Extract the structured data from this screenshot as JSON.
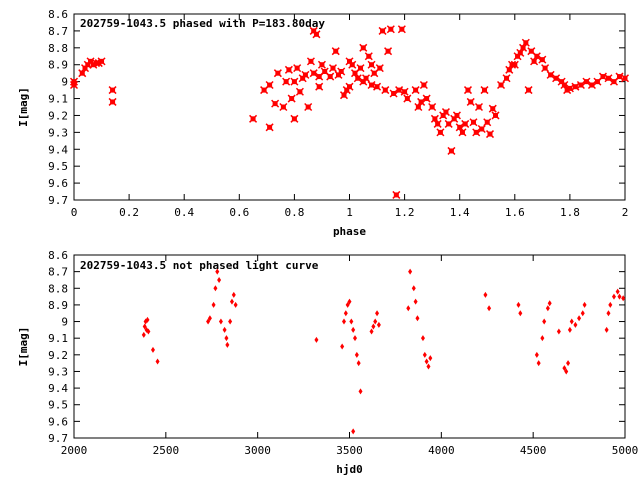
{
  "chart_data": [
    {
      "type": "scatter",
      "title": "202759-1043.5 phased with P=183.80day",
      "xlabel": "phase",
      "ylabel": "I[mag]",
      "xlim": [
        0,
        2
      ],
      "ylim": [
        8.6,
        9.7
      ],
      "y_inverted": true,
      "x_ticks": [
        "0",
        "0.2",
        "0.4",
        "0.6",
        "0.8",
        "1",
        "1.2",
        "1.4",
        "1.6",
        "1.8",
        "2"
      ],
      "y_ticks": [
        "8.6",
        "8.7",
        "8.8",
        "8.9",
        "9",
        "9.1",
        "9.2",
        "9.3",
        "9.4",
        "9.5",
        "9.6",
        "9.7"
      ],
      "marker_color": "#ff0000",
      "series": [
        {
          "points": [
            [
              0.0,
              9.02
            ],
            [
              0.0,
              9.0
            ],
            [
              0.03,
              8.95
            ],
            [
              0.04,
              8.92
            ],
            [
              0.05,
              8.9
            ],
            [
              0.06,
              8.88
            ],
            [
              0.07,
              8.9
            ],
            [
              0.08,
              8.89
            ],
            [
              0.09,
              8.89
            ],
            [
              0.1,
              8.88
            ],
            [
              0.14,
              9.05
            ],
            [
              0.14,
              9.12
            ],
            [
              0.65,
              9.22
            ],
            [
              0.69,
              9.05
            ],
            [
              0.71,
              9.02
            ],
            [
              0.71,
              9.27
            ],
            [
              0.73,
              9.13
            ],
            [
              0.74,
              8.95
            ],
            [
              0.76,
              9.15
            ],
            [
              0.77,
              9.0
            ],
            [
              0.78,
              8.93
            ],
            [
              0.79,
              9.1
            ],
            [
              0.8,
              9.0
            ],
            [
              0.8,
              9.22
            ],
            [
              0.81,
              8.92
            ],
            [
              0.82,
              9.06
            ],
            [
              0.83,
              8.98
            ],
            [
              0.84,
              8.96
            ],
            [
              0.85,
              9.15
            ],
            [
              0.86,
              8.88
            ],
            [
              0.87,
              8.7
            ],
            [
              0.87,
              8.95
            ],
            [
              0.88,
              8.72
            ],
            [
              0.89,
              9.03
            ],
            [
              0.89,
              8.97
            ],
            [
              0.9,
              8.9
            ],
            [
              0.91,
              8.94
            ],
            [
              0.93,
              8.97
            ],
            [
              0.94,
              8.92
            ],
            [
              0.95,
              8.82
            ],
            [
              0.96,
              8.96
            ],
            [
              0.97,
              8.94
            ],
            [
              0.98,
              9.08
            ],
            [
              0.99,
              9.05
            ],
            [
              1.0,
              8.88
            ],
            [
              1.0,
              9.03
            ],
            [
              1.01,
              8.9
            ],
            [
              1.02,
              8.95
            ],
            [
              1.03,
              8.98
            ],
            [
              1.04,
              8.92
            ],
            [
              1.05,
              8.8
            ],
            [
              1.05,
              9.0
            ],
            [
              1.06,
              8.98
            ],
            [
              1.07,
              8.85
            ],
            [
              1.08,
              8.9
            ],
            [
              1.08,
              9.02
            ],
            [
              1.09,
              8.95
            ],
            [
              1.1,
              9.03
            ],
            [
              1.11,
              8.92
            ],
            [
              1.12,
              8.7
            ],
            [
              1.13,
              9.05
            ],
            [
              1.14,
              8.82
            ],
            [
              1.15,
              8.69
            ],
            [
              1.16,
              9.07
            ],
            [
              1.17,
              9.67
            ],
            [
              1.18,
              9.05
            ],
            [
              1.19,
              8.69
            ],
            [
              1.2,
              9.06
            ],
            [
              1.21,
              9.1
            ],
            [
              1.24,
              9.05
            ],
            [
              1.25,
              9.15
            ],
            [
              1.26,
              9.12
            ],
            [
              1.27,
              9.02
            ],
            [
              1.28,
              9.1
            ],
            [
              1.3,
              9.15
            ],
            [
              1.31,
              9.22
            ],
            [
              1.32,
              9.25
            ],
            [
              1.33,
              9.3
            ],
            [
              1.34,
              9.2
            ],
            [
              1.35,
              9.18
            ],
            [
              1.36,
              9.25
            ],
            [
              1.37,
              9.41
            ],
            [
              1.38,
              9.22
            ],
            [
              1.39,
              9.2
            ],
            [
              1.4,
              9.27
            ],
            [
              1.41,
              9.3
            ],
            [
              1.42,
              9.25
            ],
            [
              1.43,
              9.05
            ],
            [
              1.44,
              9.12
            ],
            [
              1.45,
              9.24
            ],
            [
              1.46,
              9.3
            ],
            [
              1.47,
              9.15
            ],
            [
              1.48,
              9.28
            ],
            [
              1.49,
              9.05
            ],
            [
              1.5,
              9.24
            ],
            [
              1.51,
              9.31
            ],
            [
              1.52,
              9.16
            ],
            [
              1.53,
              9.2
            ],
            [
              1.55,
              9.02
            ],
            [
              1.57,
              8.98
            ],
            [
              1.58,
              8.93
            ],
            [
              1.59,
              8.9
            ],
            [
              1.6,
              8.9
            ],
            [
              1.61,
              8.85
            ],
            [
              1.62,
              8.83
            ],
            [
              1.63,
              8.8
            ],
            [
              1.64,
              8.77
            ],
            [
              1.65,
              9.05
            ],
            [
              1.66,
              8.82
            ],
            [
              1.67,
              8.88
            ],
            [
              1.68,
              8.85
            ],
            [
              1.7,
              8.87
            ],
            [
              1.71,
              8.92
            ],
            [
              1.73,
              8.96
            ],
            [
              1.75,
              8.98
            ],
            [
              1.77,
              9.0
            ],
            [
              1.78,
              9.02
            ],
            [
              1.79,
              9.05
            ],
            [
              1.8,
              9.04
            ],
            [
              1.82,
              9.03
            ],
            [
              1.84,
              9.02
            ],
            [
              1.86,
              9.0
            ],
            [
              1.88,
              9.02
            ],
            [
              1.9,
              9.0
            ],
            [
              1.92,
              8.97
            ],
            [
              1.94,
              8.98
            ],
            [
              1.96,
              9.0
            ],
            [
              1.98,
              8.97
            ],
            [
              2.0,
              8.98
            ]
          ]
        }
      ]
    },
    {
      "type": "scatter",
      "title": "202759-1043.5 not phased light curve",
      "xlabel": "hjd0",
      "ylabel": "I[mag]",
      "xlim": [
        2000,
        5000
      ],
      "ylim": [
        8.6,
        9.7
      ],
      "y_inverted": true,
      "x_ticks": [
        "2000",
        "2500",
        "3000",
        "3500",
        "4000",
        "4500",
        "5000"
      ],
      "y_ticks": [
        "8.6",
        "8.7",
        "8.8",
        "8.9",
        "9",
        "9.1",
        "9.2",
        "9.3",
        "9.4",
        "9.5",
        "9.6",
        "9.7"
      ],
      "marker_color": "#ff0000",
      "series": [
        {
          "points": [
            [
              2380,
              9.08
            ],
            [
              2385,
              9.03
            ],
            [
              2390,
              9.0
            ],
            [
              2395,
              9.05
            ],
            [
              2400,
              8.99
            ],
            [
              2405,
              9.06
            ],
            [
              2430,
              9.17
            ],
            [
              2455,
              9.24
            ],
            [
              2730,
              9.0
            ],
            [
              2740,
              8.98
            ],
            [
              2760,
              8.9
            ],
            [
              2770,
              8.8
            ],
            [
              2780,
              8.7
            ],
            [
              2790,
              8.75
            ],
            [
              2800,
              9.0
            ],
            [
              2820,
              9.05
            ],
            [
              2830,
              9.1
            ],
            [
              2835,
              9.14
            ],
            [
              2850,
              9.0
            ],
            [
              2860,
              8.88
            ],
            [
              2870,
              8.84
            ],
            [
              2880,
              8.9
            ],
            [
              3320,
              9.11
            ],
            [
              3460,
              9.15
            ],
            [
              3470,
              9.0
            ],
            [
              3480,
              8.95
            ],
            [
              3490,
              8.9
            ],
            [
              3500,
              8.88
            ],
            [
              3510,
              9.0
            ],
            [
              3520,
              9.05
            ],
            [
              3530,
              9.1
            ],
            [
              3540,
              9.2
            ],
            [
              3550,
              9.25
            ],
            [
              3560,
              9.42
            ],
            [
              3520,
              9.66
            ],
            [
              3620,
              9.06
            ],
            [
              3630,
              9.03
            ],
            [
              3640,
              9.0
            ],
            [
              3650,
              8.95
            ],
            [
              3660,
              9.02
            ],
            [
              3820,
              8.92
            ],
            [
              3830,
              8.7
            ],
            [
              3850,
              8.8
            ],
            [
              3860,
              8.88
            ],
            [
              3870,
              8.98
            ],
            [
              3900,
              9.1
            ],
            [
              3910,
              9.2
            ],
            [
              3920,
              9.24
            ],
            [
              3930,
              9.27
            ],
            [
              3940,
              9.22
            ],
            [
              4240,
              8.84
            ],
            [
              4260,
              8.92
            ],
            [
              4420,
              8.9
            ],
            [
              4430,
              8.95
            ],
            [
              4520,
              9.2
            ],
            [
              4530,
              9.25
            ],
            [
              4550,
              9.1
            ],
            [
              4560,
              9.0
            ],
            [
              4580,
              8.92
            ],
            [
              4590,
              8.89
            ],
            [
              4640,
              9.06
            ],
            [
              4670,
              9.28
            ],
            [
              4680,
              9.3
            ],
            [
              4690,
              9.25
            ],
            [
              4700,
              9.05
            ],
            [
              4710,
              9.0
            ],
            [
              4730,
              9.02
            ],
            [
              4750,
              8.98
            ],
            [
              4770,
              8.95
            ],
            [
              4780,
              8.9
            ],
            [
              4900,
              9.05
            ],
            [
              4910,
              8.95
            ],
            [
              4920,
              8.9
            ],
            [
              4940,
              8.85
            ],
            [
              4960,
              8.82
            ],
            [
              4970,
              8.85
            ],
            [
              4990,
              8.86
            ]
          ]
        }
      ]
    }
  ]
}
